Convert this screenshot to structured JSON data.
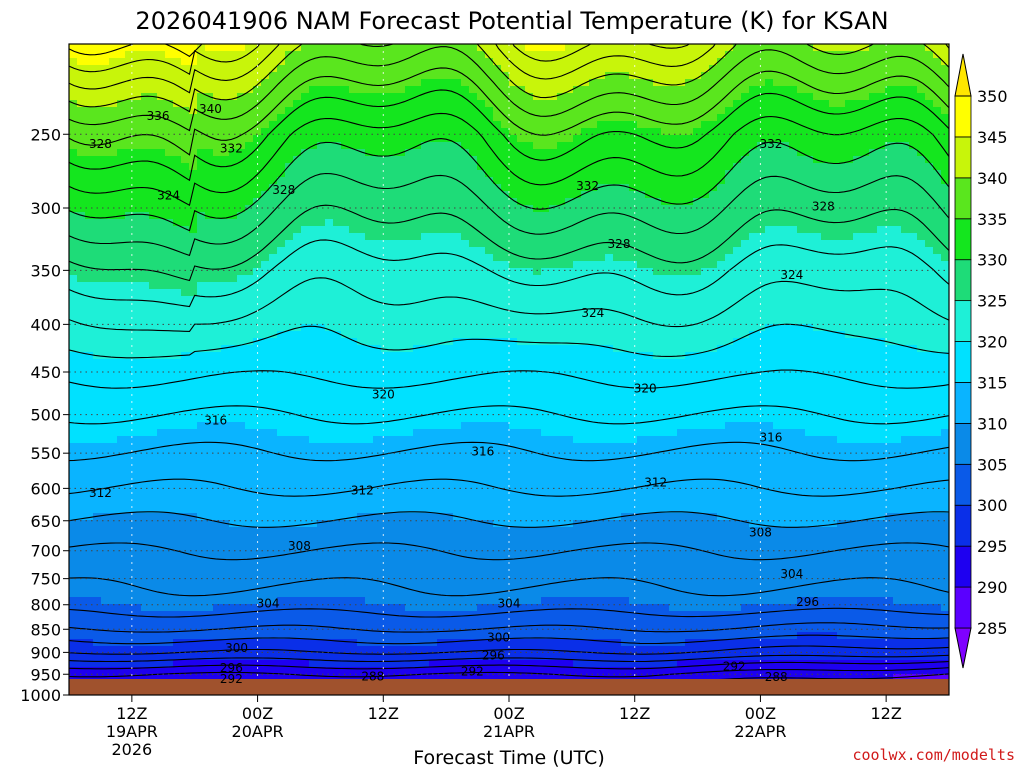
{
  "chart_data": {
    "type": "heatmap",
    "title": "2026041906 NAM Forecast Potential Temperature (K) for KSAN",
    "xlabel": "Forecast Time (UTC)",
    "credit": "coolwx.com/modelts",
    "y_axis": {
      "quantity": "pressure (hPa)",
      "scale": "log",
      "reversed": true,
      "range": [
        1000,
        200
      ],
      "ticks": [
        250,
        300,
        350,
        400,
        450,
        500,
        550,
        600,
        650,
        700,
        750,
        800,
        850,
        900,
        950,
        1000
      ],
      "tick_labels": [
        "250",
        "300",
        "350",
        "400",
        "450",
        "500",
        "550",
        "600",
        "650",
        "700",
        "750",
        "800",
        "850",
        "900",
        "950",
        "1000"
      ]
    },
    "x_axis": {
      "quantity": "forecast hour",
      "range": [
        0,
        84
      ],
      "ticks": [
        6,
        18,
        30,
        42,
        54,
        66,
        78
      ],
      "tick_labels": [
        [
          "12Z",
          "19APR",
          "2026"
        ],
        [
          "00Z",
          "20APR"
        ],
        [
          "12Z"
        ],
        [
          "00Z",
          "21APR"
        ],
        [
          "12Z"
        ],
        [
          "00Z",
          "22APR"
        ],
        [
          "12Z"
        ]
      ]
    },
    "colorbar": {
      "levels": [
        285,
        290,
        295,
        300,
        305,
        310,
        315,
        320,
        325,
        330,
        335,
        340,
        345,
        350
      ],
      "labels": [
        "285",
        "290",
        "295",
        "300",
        "305",
        "310",
        "315",
        "320",
        "325",
        "330",
        "335",
        "340",
        "345",
        "350"
      ],
      "colors": [
        "#7f00ff",
        "#5a00ff",
        "#1e00f0",
        "#0a2fe8",
        "#0a5ae8",
        "#0a8ae8",
        "#0ab4ff",
        "#00e1ff",
        "#1ef0d7",
        "#1edc78",
        "#14e61e",
        "#5ae61e",
        "#c8f50a",
        "#ffff00",
        "#ffe600"
      ],
      "extend": "both"
    },
    "profile": [
      {
        "p": 1000,
        "theta": 288
      },
      {
        "p": 950,
        "theta": 292
      },
      {
        "p": 900,
        "theta": 298
      },
      {
        "p": 850,
        "theta": 302
      },
      {
        "p": 800,
        "theta": 305
      },
      {
        "p": 700,
        "theta": 308
      },
      {
        "p": 600,
        "theta": 312
      },
      {
        "p": 500,
        "theta": 316
      },
      {
        "p": 420,
        "theta": 320
      },
      {
        "p": 350,
        "theta": 324
      },
      {
        "p": 300,
        "theta": 328
      },
      {
        "p": 250,
        "theta": 333
      },
      {
        "p": 220,
        "theta": 338
      },
      {
        "p": 200,
        "theta": 342
      }
    ],
    "contour_labels": [
      {
        "text": "340",
        "t": 13.5,
        "p": 235
      },
      {
        "text": "336",
        "t": 8.5,
        "p": 239
      },
      {
        "text": "332",
        "t": 15.5,
        "p": 259
      },
      {
        "text": "332",
        "t": 49.5,
        "p": 284
      },
      {
        "text": "332",
        "t": 67,
        "p": 256
      },
      {
        "text": "328",
        "t": 3,
        "p": 256
      },
      {
        "text": "328",
        "t": 20.5,
        "p": 287
      },
      {
        "text": "328",
        "t": 52.5,
        "p": 328
      },
      {
        "text": "328",
        "t": 72,
        "p": 299
      },
      {
        "text": "324",
        "t": 9.5,
        "p": 291
      },
      {
        "text": "324",
        "t": 69,
        "p": 354
      },
      {
        "text": "324",
        "t": 50,
        "p": 389
      },
      {
        "text": "320",
        "t": 30,
        "p": 476
      },
      {
        "text": "320",
        "t": 55,
        "p": 469
      },
      {
        "text": "316",
        "t": 14,
        "p": 507
      },
      {
        "text": "316",
        "t": 39.5,
        "p": 548
      },
      {
        "text": "316",
        "t": 67,
        "p": 529
      },
      {
        "text": "312",
        "t": 3,
        "p": 607
      },
      {
        "text": "312",
        "t": 28,
        "p": 603
      },
      {
        "text": "312",
        "t": 56,
        "p": 591
      },
      {
        "text": "308",
        "t": 22,
        "p": 692
      },
      {
        "text": "308",
        "t": 66,
        "p": 669
      },
      {
        "text": "304",
        "t": 19,
        "p": 798
      },
      {
        "text": "304",
        "t": 42,
        "p": 798
      },
      {
        "text": "304",
        "t": 69,
        "p": 741
      },
      {
        "text": "300",
        "t": 16,
        "p": 890
      },
      {
        "text": "300",
        "t": 41,
        "p": 868
      },
      {
        "text": "296",
        "t": 15.5,
        "p": 935
      },
      {
        "text": "296",
        "t": 40.5,
        "p": 907
      },
      {
        "text": "296",
        "t": 70.5,
        "p": 795
      },
      {
        "text": "292",
        "t": 15.5,
        "p": 961
      },
      {
        "text": "292",
        "t": 38.5,
        "p": 944
      },
      {
        "text": "292",
        "t": 63.5,
        "p": 932
      },
      {
        "text": "288",
        "t": 29,
        "p": 955
      },
      {
        "text": "288",
        "t": 67.5,
        "p": 957
      }
    ]
  }
}
